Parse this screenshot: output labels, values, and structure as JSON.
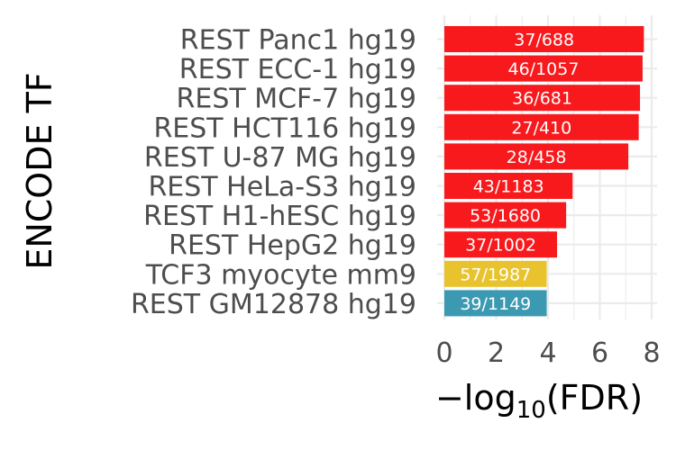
{
  "chart_data": {
    "type": "bar",
    "orientation": "horizontal",
    "ylabel": "ENCODE TF",
    "xlabel_parts": {
      "prefix": "−log",
      "sub": "10",
      "suffix": "(FDR)"
    },
    "xlim": [
      0,
      8
    ],
    "xticks": [
      0,
      2,
      4,
      6,
      8
    ],
    "grid": true,
    "categories": [
      "REST Panc1 hg19",
      "REST ECC-1 hg19",
      "REST MCF-7 hg19",
      "REST HCT116 hg19",
      "REST U-87 MG hg19",
      "REST HeLa-S3 hg19",
      "REST H1-hESC hg19",
      "REST HepG2 hg19",
      "TCF3 myocyte mm9",
      "REST GM12878 hg19"
    ],
    "values": [
      7.7,
      7.65,
      7.55,
      7.5,
      7.1,
      4.95,
      4.7,
      4.35,
      3.95,
      3.95
    ],
    "labels": [
      "37/688",
      "46/1057",
      "36/681",
      "27/410",
      "28/458",
      "43/1183",
      "53/1680",
      "37/1002",
      "57/1987",
      "39/1149"
    ],
    "colors": [
      "#f8191d",
      "#f8191d",
      "#f8191d",
      "#f8191d",
      "#f8191d",
      "#f8191d",
      "#f8191d",
      "#f8191d",
      "#e8c32e",
      "#3b9ab2"
    ]
  }
}
